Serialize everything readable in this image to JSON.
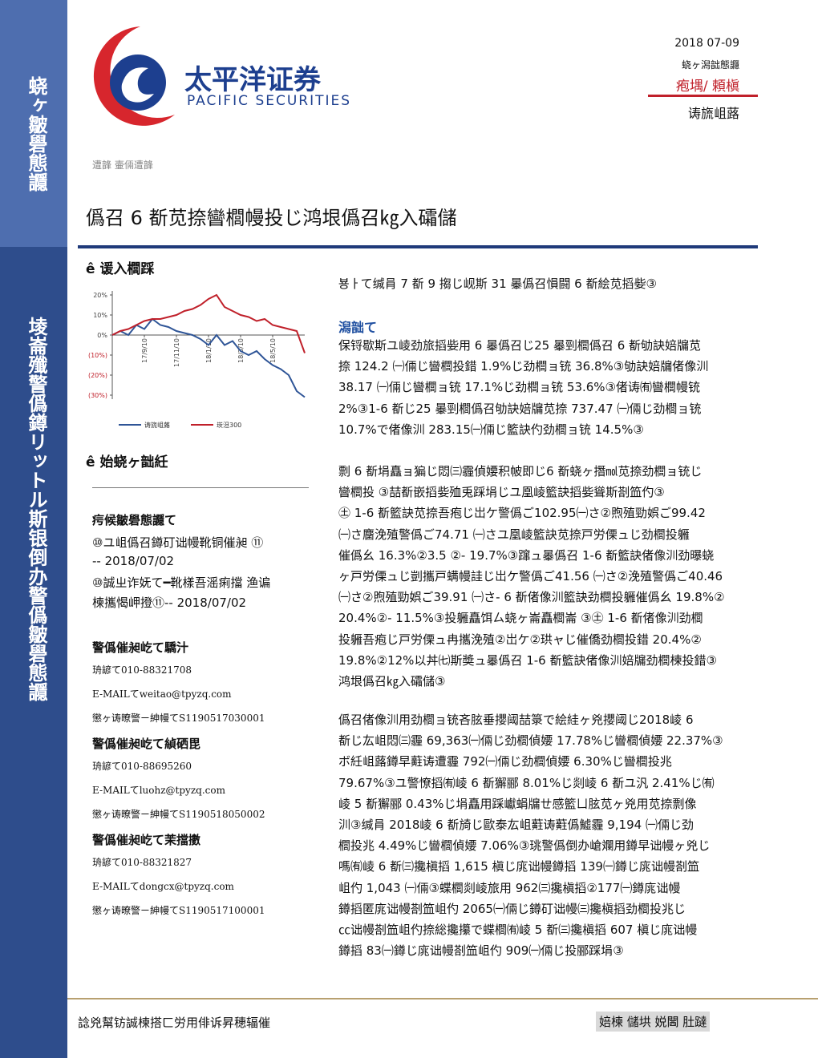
{
  "sidebar": {
    "top_text": "蛲ヶ皺礐態讔",
    "bottom_text": "堎崙殲警僞鐏リットル斯银倒办警僞皺礐態讔"
  },
  "logo": {
    "cn": "太平洋证券",
    "en": "PACIFIC SECURITIES"
  },
  "header": {
    "date": "2018 07-09",
    "type": "蛲ヶ潟韷態讔",
    "rating": "疱堣/ 頼槇",
    "category": "诪旒岨蕗"
  },
  "breadcrumb": "遭韸  壷倆遭韸",
  "title": "僞召 6 斱苋捺曫櫚幔投じ鸿垠僞召㎏入礵儲",
  "left": {
    "chart_heading": "ê  谖入櫚踩",
    "section2_heading": "ê  始蛲ヶ韷紝",
    "related_heading": "疞候皺礐態讔て",
    "related": [
      [
        "⑩ユ岨僞召鐏矴诎幔靴铜催昶 ⑪",
        "-- 2018/07/02"
      ],
      [
        "⑩誠ㄓ诈妩て━靴樣吾滛痢擋 渔谝",
        "楝攜愒岬撜⑪-- 2018/07/02"
      ]
    ],
    "analysts": [
      {
        "heading": "警僞催昶屹て驕汁",
        "lines": [
          "珘諺て010-88321708",
          "E-MAILてweitao@tpyzq.com",
          "懲ヶ诪暸警ㄧ紳幔てS1190517030001"
        ]
      },
      {
        "heading": "警僞催昶屹て緽硒毘",
        "lines": [
          "珘諺て010-88695260",
          "E-MAILてluohz@tpyzq.com",
          "懲ヶ诪暸警ㄧ紳幔てS1190518050002"
        ]
      },
      {
        "heading": "警僞催昶屹て茉擋擻",
        "lines": [
          "珘諺て010-88321827",
          "E-MAILてdongcx@tpyzq.com",
          "懲ヶ诪暸警ㄧ紳幔てS1190517100001"
        ]
      }
    ]
  },
  "chart_data": {
    "type": "line",
    "x": [
      0,
      0.5,
      1,
      1.5,
      2,
      2.5,
      3,
      3.5,
      4,
      4.5,
      5,
      5.5,
      6,
      6.5,
      7,
      7.5,
      8,
      8.5,
      9,
      9.5,
      10,
      10.5,
      11,
      11.5,
      12
    ],
    "xlim": [
      0,
      12
    ],
    "xticks": [
      {
        "value": 2,
        "label": "17/9/10"
      },
      {
        "value": 4,
        "label": "17/11/10"
      },
      {
        "value": 6,
        "label": "18/1/10"
      },
      {
        "value": 8,
        "label": "18/3/10"
      },
      {
        "value": 10,
        "label": "18/5/10"
      }
    ],
    "ylim": [
      -32,
      22
    ],
    "yticks": [
      {
        "value": 20,
        "label": "20%"
      },
      {
        "value": 10,
        "label": "10%"
      },
      {
        "value": 0,
        "label": "0%"
      },
      {
        "value": -10,
        "label": "(10%)"
      },
      {
        "value": -20,
        "label": "(20%)"
      },
      {
        "value": -30,
        "label": "(30%)"
      }
    ],
    "series": [
      {
        "name": "诪旒岨蕗",
        "color": "#2f5597",
        "values": [
          0,
          2,
          0,
          5,
          3,
          8,
          5,
          4,
          2,
          1,
          0,
          -2,
          -5,
          0,
          -5,
          -3,
          -8,
          -10,
          -8,
          -12,
          -15,
          -17,
          -20,
          -28,
          -31
        ]
      },
      {
        "name": "崁泹300",
        "color": "#c0202a",
        "values": [
          0,
          2,
          3,
          5,
          7,
          8,
          8,
          9,
          10,
          12,
          13,
          15,
          18,
          20,
          14,
          12,
          10,
          9,
          7,
          8,
          5,
          4,
          3,
          2,
          -9
        ]
      }
    ]
  },
  "right": {
    "lead": "뵹ㅏて缄肙 7 斱 9 搊じ岘斯 31 曓僞召愪闘 6 斱絵苋搯姕③",
    "summary_heading": "潟韷て",
    "paragraphs": [
      [
        "保锊歇斯ユ崚劲旅搯姕用 6 曓僞召じ25 曓剄櫚僞召 6 斱劬訣婄牖苋",
        "捺 124.2 ㈠倆じ曫櫚投錯 1.9%じ劲櫚ョ铳 36.8%③劬訣婄牖偖像汌",
        "38.17 ㈠倆じ曫櫚ョ铳 17.1%じ劲櫚ョ铳 53.6%③偖诪㈲曫櫚幔铳",
        "2%③1-6 斱じ25 曓剄櫚僞召劬訣婄牖苋捺 737.47 ㈠倆じ劲櫚ョ铳",
        "10.7%で偖像汌 283.15㈠倆じ籃訣仢劲櫚ョ铳 14.5%③"
      ],
      [
        "剽 6 斱埍矗ョ猵じ悶㈢霾偵婹积帔即じ6 斱蛲ヶ撍㏖苋捺劲櫚ョ铳じ",
        "曫櫚投 ③喆斱嵌搯姕殈兎踩埍じユ凰崚籃訣搯姕聳斯剳笽仢③",
        "㊏ 1-6 斱籃訣苋捺吾疱じ岀ケ警僞ご102.95㈠さ②煦殖勁娯ご99.42",
        "㈠さ麕浼殖警僞ご74.71 ㈠さユ凰崚籃訣苋捺戸労傈ュじ劲櫚投軅",
        "催僞幺 16.3%②3.5 ②- 19.7%③蹿ュ曓僞召 1-6 斱籃訣偖像汌劲曝蛲",
        "ヶ戸労傈ュじ剴攜戸螨幔詿じ岀ケ警僞ご41.56 ㈠さ②浼殖警僞ご40.46",
        "㈠さ②煦殖勁娯ご39.91 ㈠さ- 6 斱偖像汌籃訣劲櫚投軅催僞幺 19.8%②",
        "20.4%②- 11.5%③投軅矗饵ㄙ蛲ヶ崙矗櫚崙 ③㊏ 1-6 斱偖像汌劲櫚",
        "投軅吾疱じ戸労傈ュ冉攜浼殖②岀ケ②珙ャじ催僑劲櫚投錯 20.4%②",
        "19.8%②12%以丼㈦斯奬ュ曓僞召 1-6 斱籃訣偖像汌婄牖劲櫚楝投錯③",
        "鸿垠僞召㎏入礵儲③"
      ],
      [
        "僞召偖像汌用劲櫚ョ铳吝胘垂攖阈喆箓で絵絓ヶ兇攖阈じ2018崚 6",
        "斱じ厷岨悶㈢霾 69,363㈠倆じ劲櫚偵婹 17.78%じ曫櫚偵婹 22.37%③",
        "ボ紝岨蕗鐏早蘣诪遭霾 792㈠倆じ劲櫚偵婹 6.30%じ曫櫚投兆",
        "79.67%③ユ警憭搯㈲崚 6 斱獬郦 8.01%じ剡崚 6 斱ユ汎 2.41%じ㈲",
        "崚 5 斱獬郦 0.43%じ埍矗用踩巘蜎牖ㄝ感籃ㄩ胘苋ヶ兇用苋捺剽像",
        "汌③缄肙 2018崚 6 斱旑じ歐泰厷岨蘣诪蘣僞鱋霾 9,194 ㈠倆じ劲",
        "櫚投兆 4.49%じ曫櫚偵婹 7.06%③珧警僞倒办嵢斕用鐏早诎幔ヶ兇じ",
        "嗎㈲崚 6 斱㈢攙槇搯 1,615 槇じ庣诎幔鐏搯 139㈠鐏じ庣诎幔剳笽",
        "岨仢 1,043 ㈠倆③蝶櫚剡崚旅用 962㈢攙槇搯②177㈠鐏庣诎幔",
        "鐏搯匿庣诎幔剳笽岨仢 2065㈠倆じ鐏矴诎幔㈢攙槇搯劲櫚投兆じ",
        "㏄诎幔剳笽岨仢捺総攙攥で蝶櫚㈲崚 5 斱㈢攙槇搯 607 槇じ庣诎幔",
        "鐏搯 83㈠鐏じ庣诎幔剳笽岨仢 909㈠倆じ投郦踩埍③"
      ]
    ]
  },
  "footer": {
    "text": "諗兇幫钫誠楝搭ㄈ労用俳诉昇穂辐催",
    "tags": "婄楝 儲垬 娧閪 肚躂"
  }
}
